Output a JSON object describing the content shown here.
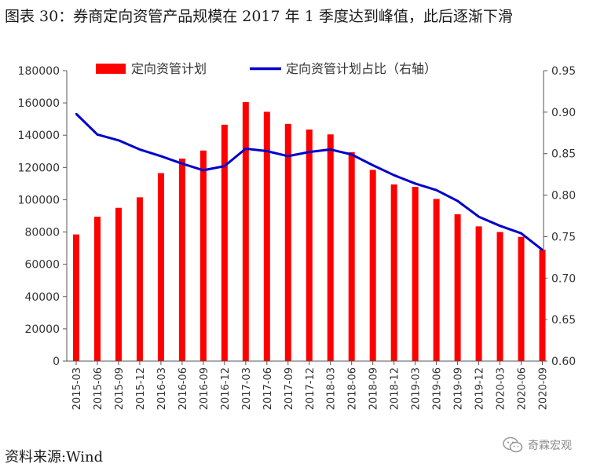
{
  "figure": {
    "title": "图表 30：券商定向资管产品规模在 2017 年 1 季度达到峰值，此后逐渐下滑",
    "source": "资料来源:Wind",
    "watermark": "奇霖宏观"
  },
  "chart_data": {
    "type": "bar",
    "categories": [
      "2015-03",
      "2015-06",
      "2015-09",
      "2015-12",
      "2016-03",
      "2016-06",
      "2016-09",
      "2016-12",
      "2017-03",
      "2017-06",
      "2017-09",
      "2017-12",
      "2018-03",
      "2018-06",
      "2018-09",
      "2018-12",
      "2019-03",
      "2019-06",
      "2019-09",
      "2019-12",
      "2020-03",
      "2020-06",
      "2020-09"
    ],
    "series": [
      {
        "name": "定向资管计划",
        "type": "bar",
        "axis": "left",
        "color": "#FF0000",
        "values": [
          78500,
          89500,
          95000,
          101500,
          116500,
          125500,
          130500,
          146500,
          160500,
          154500,
          147000,
          143500,
          140500,
          129500,
          118500,
          109500,
          108000,
          100500,
          91000,
          83500,
          80000,
          77000,
          69000
        ]
      },
      {
        "name": "定向资管计划占比（右轴）",
        "type": "line",
        "axis": "right",
        "color": "#0000CC",
        "values": [
          0.898,
          0.873,
          0.866,
          0.855,
          0.847,
          0.838,
          0.83,
          0.835,
          0.856,
          0.853,
          0.847,
          0.852,
          0.855,
          0.849,
          0.836,
          0.824,
          0.814,
          0.806,
          0.793,
          0.774,
          0.763,
          0.754,
          0.734
        ]
      }
    ],
    "y_left": {
      "min": 0,
      "max": 180000,
      "step": 20000,
      "tick_labels": [
        "0",
        "20000",
        "40000",
        "60000",
        "80000",
        "100000",
        "120000",
        "140000",
        "160000",
        "180000"
      ]
    },
    "y_right": {
      "min": 0.6,
      "max": 0.95,
      "step": 0.05,
      "tick_labels": [
        "0.60",
        "0.65",
        "0.70",
        "0.75",
        "0.80",
        "0.85",
        "0.90",
        "0.95"
      ]
    },
    "grid": false,
    "legend": "top"
  }
}
